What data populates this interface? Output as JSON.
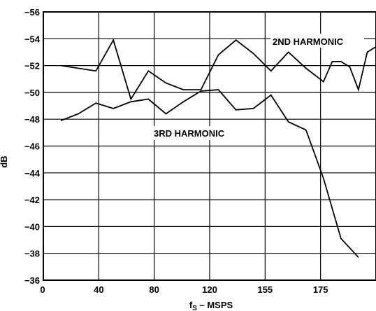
{
  "chart_data": {
    "type": "line",
    "title": "",
    "xlabel": "f",
    "xlabel_sub": "S",
    "xlabel_rest": " – MSPS",
    "ylabel": "dB",
    "x_ticks": [
      "0",
      "40",
      "80",
      "120",
      "155",
      "175"
    ],
    "y_ticks": [
      "-56",
      "-54",
      "-52",
      "-50",
      "-48",
      "-46",
      "-44",
      "-42",
      "-40",
      "-38",
      "-36"
    ],
    "xlim": [
      0,
      190
    ],
    "ylim": [
      -56,
      -36
    ],
    "grid": true,
    "series": [
      {
        "name": "2ND HARMONIC",
        "color": "#000000",
        "x": [
          10,
          30,
          40,
          50,
          60,
          70,
          80,
          90,
          100,
          110,
          120,
          130,
          140,
          150,
          160,
          165,
          170,
          175,
          180,
          185,
          190
        ],
        "y": [
          -52.0,
          -51.6,
          -53.9,
          -49.5,
          -51.6,
          -50.7,
          -50.2,
          -50.2,
          -52.8,
          -53.9,
          -52.9,
          -51.6,
          -53.0,
          -51.8,
          -50.8,
          -52.3,
          -52.3,
          -51.9,
          -50.2,
          -53.0,
          -53.4
        ]
      },
      {
        "name": "3RD HARMONIC",
        "color": "#000000",
        "x": [
          10,
          20,
          30,
          40,
          50,
          60,
          70,
          80,
          90,
          100,
          110,
          120,
          130,
          140,
          150,
          160,
          170,
          180
        ],
        "y": [
          -47.9,
          -48.4,
          -49.2,
          -48.8,
          -49.3,
          -49.5,
          -48.4,
          -49.3,
          -50.1,
          -50.2,
          -48.7,
          -48.8,
          -49.8,
          -47.8,
          -47.2,
          -43.6,
          -39.1,
          -37.7
        ]
      }
    ]
  }
}
